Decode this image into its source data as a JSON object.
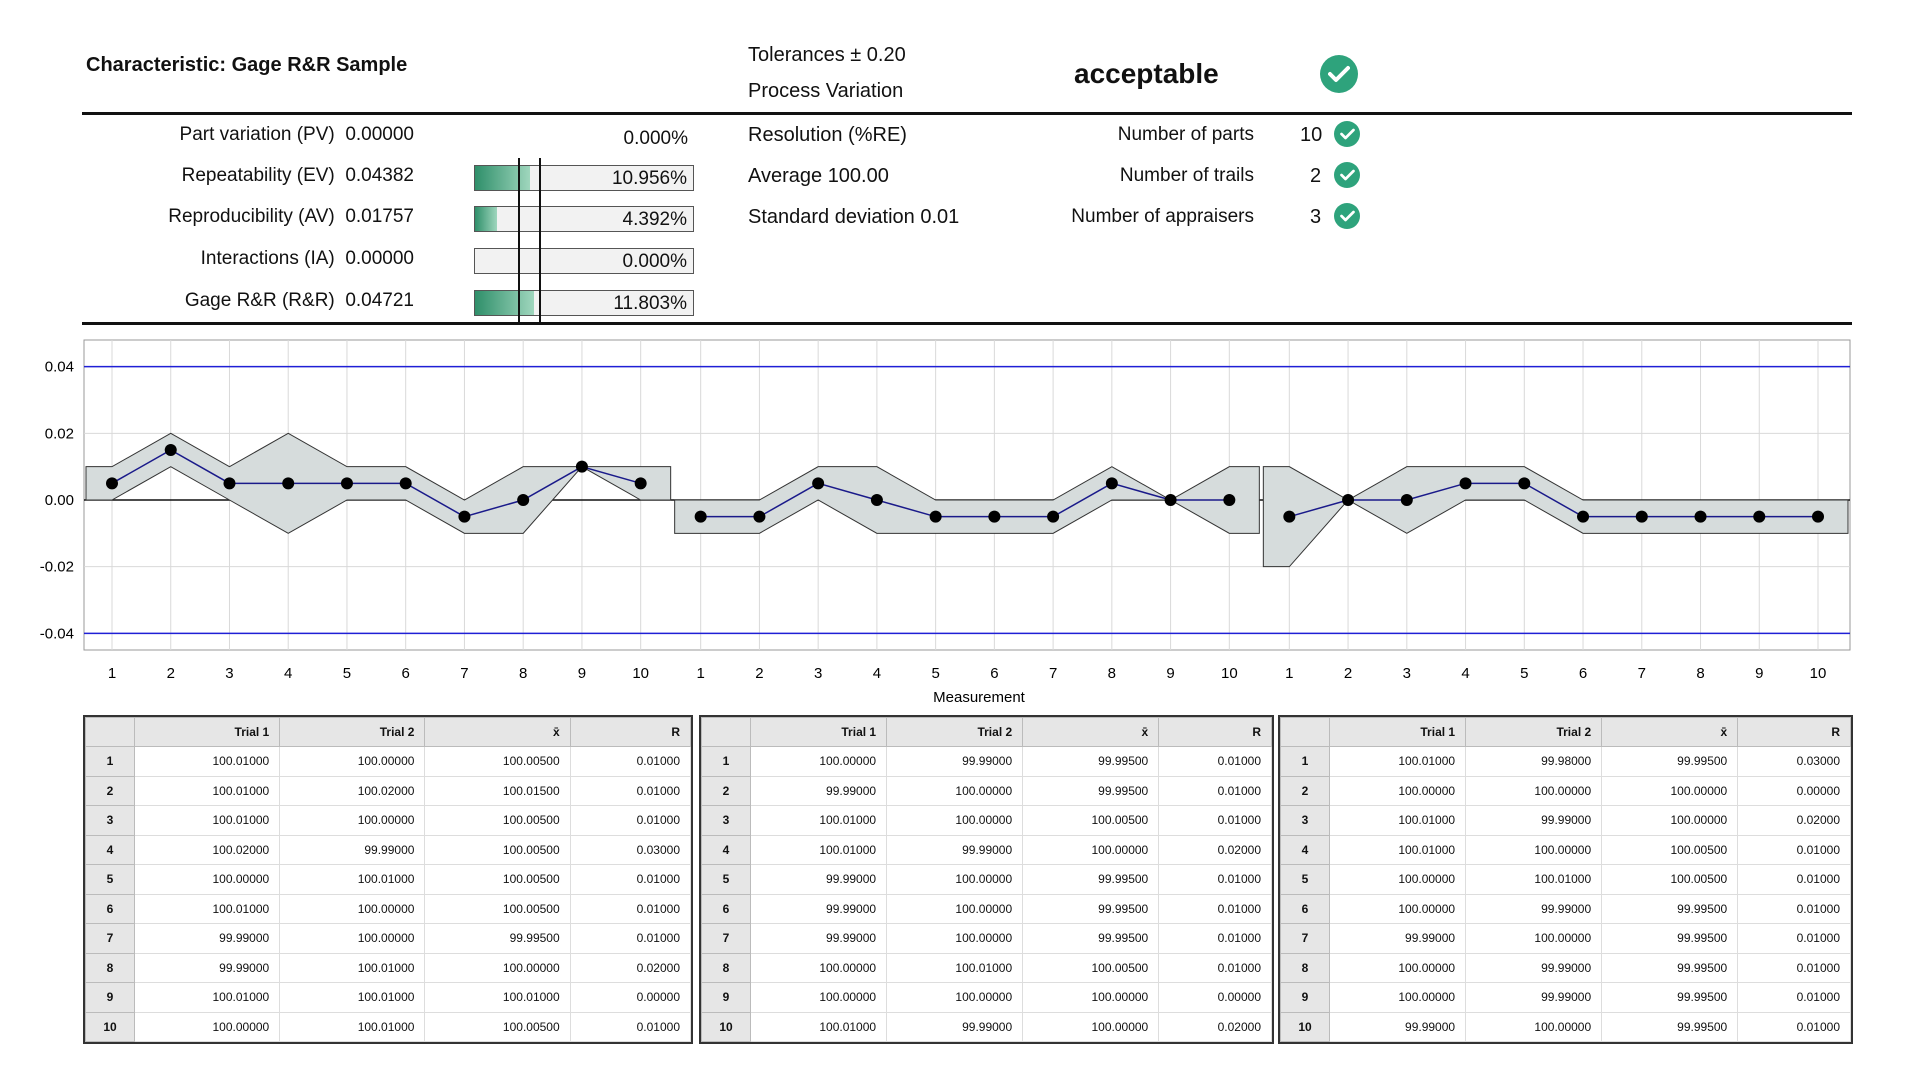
{
  "header": {
    "characteristic": "Characteristic: Gage R&R Sample",
    "tolerances": "Tolerances ± 0.20",
    "process_variation": "Process Variation",
    "status": "acceptable"
  },
  "metrics": [
    {
      "label": "Part variation (PV)",
      "value": "0.00000",
      "percent": "0.000%",
      "fraction": 0
    },
    {
      "label": "Repeatability (EV)",
      "value": "0.04382",
      "percent": "10.956%",
      "fraction": 0.10956
    },
    {
      "label": "Reproducibility (AV)",
      "value": "0.01757",
      "percent": "4.392%",
      "fraction": 0.04392
    },
    {
      "label": "Interactions (IA)",
      "value": "0.00000",
      "percent": "0.000%",
      "fraction": 0
    },
    {
      "label": "Gage R&R (R&R)",
      "value": "0.04721",
      "percent": "11.803%",
      "fraction": 0.11803
    }
  ],
  "stats": {
    "resolution": "Resolution (%RE)",
    "average": "Average 100.00",
    "std_dev": "Standard deviation 0.01"
  },
  "counts": [
    {
      "label": "Number of parts",
      "value": "10"
    },
    {
      "label": "Number of trails",
      "value": "2"
    },
    {
      "label": "Number of appraisers",
      "value": "3"
    }
  ],
  "chart_data": {
    "type": "line",
    "xlabel": "Measurement",
    "ylim": [
      -0.045,
      0.048
    ],
    "yticks": [
      "0.04",
      "0.02",
      "0.00",
      "-0.02",
      "-0.04"
    ],
    "limits": [
      0.04,
      -0.04
    ],
    "series": [
      {
        "x": [
          1,
          2,
          3,
          4,
          5,
          6,
          7,
          8,
          9,
          10
        ],
        "values": [
          0.005,
          0.015,
          0.005,
          0.005,
          0.005,
          0.005,
          -0.005,
          0.0,
          0.01,
          0.005
        ],
        "band_upper": [
          0.01,
          0.02,
          0.01,
          0.02,
          0.01,
          0.01,
          0.0,
          0.01,
          0.01,
          0.01
        ],
        "band_lower": [
          0.0,
          0.01,
          0.0,
          -0.01,
          0.0,
          0.0,
          -0.01,
          -0.01,
          0.01,
          0.0
        ]
      },
      {
        "x": [
          1,
          2,
          3,
          4,
          5,
          6,
          7,
          8,
          9,
          10
        ],
        "values": [
          -0.005,
          -0.005,
          0.005,
          0.0,
          -0.005,
          -0.005,
          -0.005,
          0.005,
          0.0,
          0.0
        ],
        "band_upper": [
          0.0,
          0.0,
          0.01,
          0.01,
          0.0,
          0.0,
          0.0,
          0.01,
          0.0,
          0.01
        ],
        "band_lower": [
          -0.01,
          -0.01,
          0.0,
          -0.01,
          -0.01,
          -0.01,
          -0.01,
          0.0,
          0.0,
          -0.01
        ]
      },
      {
        "x": [
          1,
          2,
          3,
          4,
          5,
          6,
          7,
          8,
          9,
          10
        ],
        "values": [
          -0.005,
          0.0,
          0.0,
          0.005,
          0.005,
          -0.005,
          -0.005,
          -0.005,
          -0.005,
          -0.005
        ],
        "band_upper": [
          0.01,
          0.0,
          0.01,
          0.01,
          0.01,
          0.0,
          0.0,
          0.0,
          0.0,
          0.0
        ],
        "band_lower": [
          -0.02,
          0.0,
          -0.01,
          0.0,
          0.0,
          -0.01,
          -0.01,
          -0.01,
          -0.01,
          -0.01
        ]
      }
    ]
  },
  "table_headers": [
    "Trial 1",
    "Trial 2",
    "x̄",
    "R"
  ],
  "tables": [
    [
      [
        "100.01000",
        "100.00000",
        "100.00500",
        "0.01000"
      ],
      [
        "100.01000",
        "100.02000",
        "100.01500",
        "0.01000"
      ],
      [
        "100.01000",
        "100.00000",
        "100.00500",
        "0.01000"
      ],
      [
        "100.02000",
        "99.99000",
        "100.00500",
        "0.03000"
      ],
      [
        "100.00000",
        "100.01000",
        "100.00500",
        "0.01000"
      ],
      [
        "100.01000",
        "100.00000",
        "100.00500",
        "0.01000"
      ],
      [
        "99.99000",
        "100.00000",
        "99.99500",
        "0.01000"
      ],
      [
        "99.99000",
        "100.01000",
        "100.00000",
        "0.02000"
      ],
      [
        "100.01000",
        "100.01000",
        "100.01000",
        "0.00000"
      ],
      [
        "100.00000",
        "100.01000",
        "100.00500",
        "0.01000"
      ]
    ],
    [
      [
        "100.00000",
        "99.99000",
        "99.99500",
        "0.01000"
      ],
      [
        "99.99000",
        "100.00000",
        "99.99500",
        "0.01000"
      ],
      [
        "100.01000",
        "100.00000",
        "100.00500",
        "0.01000"
      ],
      [
        "100.01000",
        "99.99000",
        "100.00000",
        "0.02000"
      ],
      [
        "99.99000",
        "100.00000",
        "99.99500",
        "0.01000"
      ],
      [
        "99.99000",
        "100.00000",
        "99.99500",
        "0.01000"
      ],
      [
        "99.99000",
        "100.00000",
        "99.99500",
        "0.01000"
      ],
      [
        "100.00000",
        "100.01000",
        "100.00500",
        "0.01000"
      ],
      [
        "100.00000",
        "100.00000",
        "100.00000",
        "0.00000"
      ],
      [
        "100.01000",
        "99.99000",
        "100.00000",
        "0.02000"
      ]
    ],
    [
      [
        "100.01000",
        "99.98000",
        "99.99500",
        "0.03000"
      ],
      [
        "100.00000",
        "100.00000",
        "100.00000",
        "0.00000"
      ],
      [
        "100.01000",
        "99.99000",
        "100.00000",
        "0.02000"
      ],
      [
        "100.01000",
        "100.00000",
        "100.00500",
        "0.01000"
      ],
      [
        "100.00000",
        "100.01000",
        "100.00500",
        "0.01000"
      ],
      [
        "100.00000",
        "99.99000",
        "99.99500",
        "0.01000"
      ],
      [
        "99.99000",
        "100.00000",
        "99.99500",
        "0.01000"
      ],
      [
        "100.00000",
        "99.99000",
        "99.99500",
        "0.01000"
      ],
      [
        "100.00000",
        "99.99000",
        "99.99500",
        "0.01000"
      ],
      [
        "99.99000",
        "100.00000",
        "99.99500",
        "0.01000"
      ]
    ]
  ],
  "colors": {
    "accent_green": "#2ea37c",
    "limit_line": "#1f1fd6",
    "mean_line": "#1a1a8a",
    "band_fill": "#d6dcdc"
  }
}
